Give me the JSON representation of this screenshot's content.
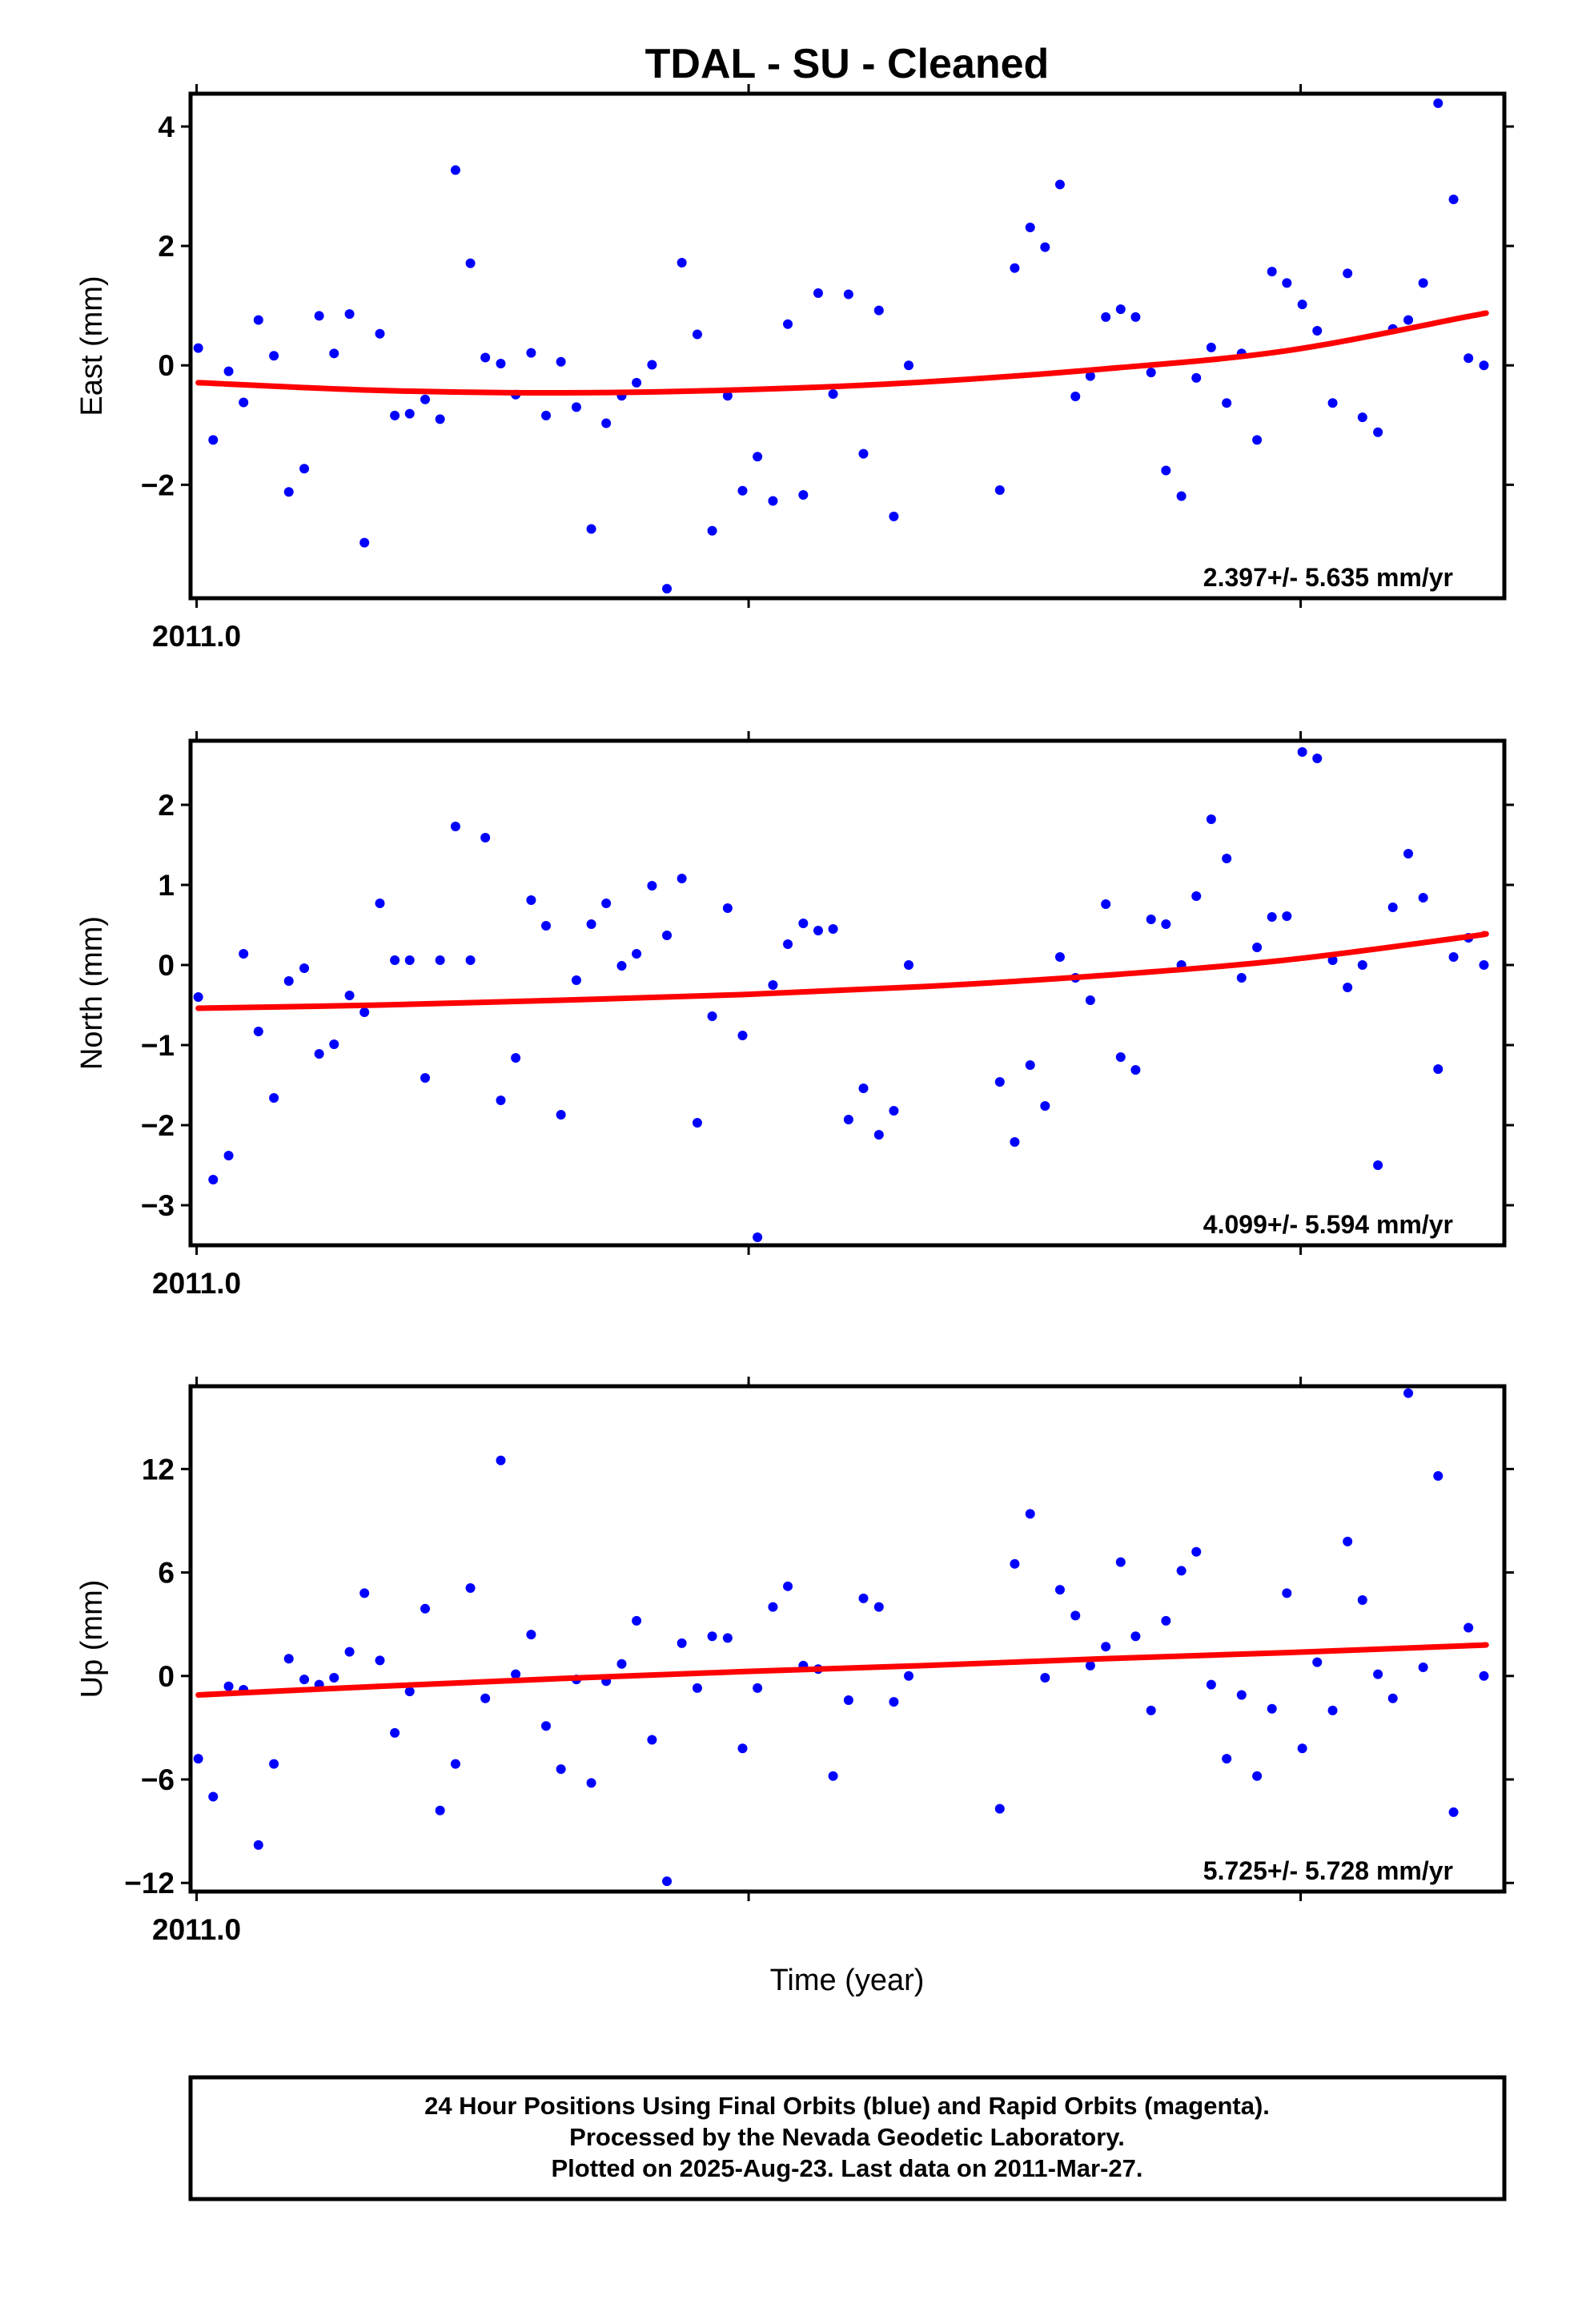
{
  "title": "TDAL  - SU - Cleaned",
  "xlabel": "Time (year)",
  "footer": [
    "24 Hour Positions Using Final Orbits (blue) and Rapid Orbits (magenta).",
    "Processed by the Nevada Geodetic Laboratory.",
    "Plotted on 2025-Aug-23. Last data on 2011-Mar-27."
  ],
  "colors": {
    "points": "#0000ff",
    "fit": "#ff0000",
    "frame": "#000000"
  },
  "chart_data": [
    {
      "type": "scatter",
      "ylabel": "East (mm)",
      "rate_text": "2.397+/- 5.635 mm/yr",
      "xlim": [
        2010.9989,
        2011.2369
      ],
      "ylim": [
        -3.9,
        4.55
      ],
      "x_ticks": [
        2011.0,
        2011.1,
        2011.2
      ],
      "x_tick_labels": [
        "2011.0",
        "",
        ""
      ],
      "y_ticks": [
        -2,
        0,
        2,
        4
      ],
      "y_tick_labels": [
        "−2",
        "0",
        "2",
        "4"
      ],
      "series": [
        {
          "kind": "points",
          "x": [
            2011.0003,
            2011.003,
            2011.0058,
            2011.0085,
            2011.0112,
            2011.014,
            2011.0167,
            2011.0195,
            2011.0222,
            2011.0249,
            2011.0277,
            2011.0304,
            2011.0332,
            2011.0359,
            2011.0386,
            2011.0414,
            2011.0441,
            2011.0469,
            2011.0496,
            2011.0523,
            2011.0551,
            2011.0578,
            2011.0606,
            2011.0633,
            2011.066,
            2011.0688,
            2011.0715,
            2011.0742,
            2011.077,
            2011.0797,
            2011.0825,
            2011.0852,
            2011.0879,
            2011.0907,
            2011.0934,
            2011.0962,
            2011.0989,
            2011.1016,
            2011.1044,
            2011.1071,
            2011.1099,
            2011.1126,
            2011.1153,
            2011.1181,
            2011.1208,
            2011.1236,
            2011.1263,
            2011.129,
            2011.1455,
            2011.1482,
            2011.151,
            2011.1537,
            2011.1564,
            2011.1592,
            2011.1619,
            2011.1647,
            2011.1674,
            2011.1701,
            2011.1729,
            2011.1756,
            2011.1784,
            2011.1811,
            2011.1838,
            2011.1866,
            2011.1893,
            2011.1921,
            2011.1948,
            2011.1975,
            2011.2003,
            2011.203,
            2011.2058,
            2011.2085,
            2011.2112,
            2011.214,
            2011.2167,
            2011.2195,
            2011.2222,
            2011.2249,
            2011.2277,
            2011.2304,
            2011.2332
          ],
          "y": [
            0.29,
            -1.25,
            -0.1,
            -0.62,
            0.76,
            0.16,
            -2.12,
            -1.73,
            0.83,
            0.2,
            0.86,
            -2.97,
            0.53,
            -0.84,
            -0.81,
            -0.57,
            -0.9,
            3.27,
            1.71,
            0.13,
            0.03,
            -0.49,
            0.21,
            -0.84,
            0.06,
            -0.7,
            -2.74,
            -0.97,
            -0.51,
            -0.29,
            0.01,
            -3.74,
            1.72,
            0.52,
            -2.77,
            -0.51,
            -2.1,
            -1.53,
            -2.27,
            0.69,
            -2.17,
            1.21,
            -0.48,
            1.19,
            -1.48,
            0.92,
            -2.53,
            0.0,
            -2.09,
            1.63,
            2.31,
            1.98,
            3.03,
            -0.52,
            -0.18,
            0.81,
            0.94,
            0.81,
            -0.12,
            -1.76,
            -2.19,
            -0.21,
            0.3,
            -0.63,
            0.2,
            -1.25,
            1.57,
            1.38,
            1.02,
            0.58,
            -0.63,
            1.54,
            -0.87,
            -1.12,
            0.61,
            0.76,
            1.38,
            4.39,
            2.78,
            0.12,
            0.0
          ]
        },
        {
          "kind": "fit",
          "x": [
            2011.0003,
            2011.0331,
            2011.0659,
            2011.0987,
            2011.1315,
            2011.1643,
            2011.1971,
            2011.2299,
            2011.2332
          ],
          "y": [
            -0.29,
            -0.42,
            -0.46,
            -0.41,
            -0.28,
            -0.06,
            0.24,
            0.81,
            0.87
          ]
        }
      ]
    },
    {
      "type": "scatter",
      "ylabel": "North (mm)",
      "rate_text": "4.099+/- 5.594 mm/yr",
      "xlim": [
        2010.9989,
        2011.2369
      ],
      "ylim": [
        -3.5,
        2.8
      ],
      "x_ticks": [
        2011.0,
        2011.1,
        2011.2
      ],
      "x_tick_labels": [
        "2011.0",
        "",
        ""
      ],
      "y_ticks": [
        -3,
        -2,
        -1,
        0,
        1,
        2
      ],
      "y_tick_labels": [
        "−3",
        "−2",
        "−1",
        "0",
        "1",
        "2"
      ],
      "series": [
        {
          "kind": "points",
          "x": [
            2011.0003,
            2011.003,
            2011.0058,
            2011.0085,
            2011.0112,
            2011.014,
            2011.0167,
            2011.0195,
            2011.0222,
            2011.0249,
            2011.0277,
            2011.0304,
            2011.0332,
            2011.0359,
            2011.0386,
            2011.0414,
            2011.0441,
            2011.0469,
            2011.0496,
            2011.0523,
            2011.0551,
            2011.0578,
            2011.0606,
            2011.0633,
            2011.066,
            2011.0688,
            2011.0715,
            2011.0742,
            2011.077,
            2011.0797,
            2011.0825,
            2011.0852,
            2011.0879,
            2011.0907,
            2011.0934,
            2011.0962,
            2011.0989,
            2011.1016,
            2011.1044,
            2011.1071,
            2011.1099,
            2011.1126,
            2011.1153,
            2011.1181,
            2011.1208,
            2011.1236,
            2011.1263,
            2011.129,
            2011.1455,
            2011.1482,
            2011.151,
            2011.1537,
            2011.1564,
            2011.1592,
            2011.1619,
            2011.1647,
            2011.1674,
            2011.1701,
            2011.1729,
            2011.1756,
            2011.1784,
            2011.1811,
            2011.1838,
            2011.1866,
            2011.1893,
            2011.1921,
            2011.1948,
            2011.1975,
            2011.2003,
            2011.203,
            2011.2058,
            2011.2085,
            2011.2112,
            2011.214,
            2011.2167,
            2011.2195,
            2011.2222,
            2011.2249,
            2011.2277,
            2011.2304,
            2011.2332
          ],
          "y": [
            -0.4,
            -2.68,
            -2.38,
            0.14,
            -0.83,
            -1.66,
            -0.2,
            -0.04,
            -1.11,
            -0.99,
            -0.38,
            -0.59,
            0.77,
            0.06,
            0.06,
            -1.41,
            0.06,
            1.73,
            0.06,
            1.59,
            -1.69,
            -1.16,
            0.81,
            0.49,
            -1.87,
            -0.19,
            0.51,
            0.77,
            -0.01,
            0.14,
            0.99,
            0.37,
            1.08,
            -1.97,
            -0.64,
            0.71,
            -0.88,
            -3.4,
            -0.25,
            0.26,
            0.52,
            0.43,
            0.45,
            -1.93,
            -1.54,
            -2.12,
            -1.82,
            0.0,
            -1.46,
            -2.21,
            -1.25,
            -1.76,
            0.1,
            -0.16,
            -0.44,
            0.76,
            -1.15,
            -1.31,
            0.57,
            0.51,
            0.0,
            0.86,
            1.82,
            1.33,
            -0.16,
            0.22,
            0.6,
            0.61,
            2.66,
            2.58,
            0.06,
            -0.28,
            0.0,
            -2.5,
            0.72,
            1.39,
            0.84,
            -1.3,
            0.1,
            0.34,
            0.0
          ]
        },
        {
          "kind": "fit",
          "x": [
            2011.0003,
            2011.0331,
            2011.0659,
            2011.0987,
            2011.1315,
            2011.1643,
            2011.1971,
            2011.2299,
            2011.2332
          ],
          "y": [
            -0.54,
            -0.5,
            -0.44,
            -0.37,
            -0.27,
            -0.13,
            0.06,
            0.35,
            0.39
          ]
        }
      ]
    },
    {
      "type": "scatter",
      "ylabel": "Up (mm)",
      "rate_text": "5.725+/- 5.728 mm/yr",
      "xlim": [
        2010.9989,
        2011.2369
      ],
      "ylim": [
        -12.5,
        16.8
      ],
      "x_ticks": [
        2011.0,
        2011.1,
        2011.2
      ],
      "x_tick_labels": [
        "2011.0",
        "",
        ""
      ],
      "y_ticks": [
        -12,
        -6,
        0,
        6,
        12
      ],
      "y_tick_labels": [
        "−12",
        "−6",
        "0",
        "6",
        "12"
      ],
      "series": [
        {
          "kind": "points",
          "x": [
            2011.0003,
            2011.003,
            2011.0058,
            2011.0085,
            2011.0112,
            2011.014,
            2011.0167,
            2011.0195,
            2011.0222,
            2011.0249,
            2011.0277,
            2011.0304,
            2011.0332,
            2011.0359,
            2011.0386,
            2011.0414,
            2011.0441,
            2011.0469,
            2011.0496,
            2011.0523,
            2011.0551,
            2011.0578,
            2011.0606,
            2011.0633,
            2011.066,
            2011.0688,
            2011.0715,
            2011.0742,
            2011.077,
            2011.0797,
            2011.0825,
            2011.0852,
            2011.0879,
            2011.0907,
            2011.0934,
            2011.0962,
            2011.0989,
            2011.1016,
            2011.1044,
            2011.1071,
            2011.1099,
            2011.1126,
            2011.1153,
            2011.1181,
            2011.1208,
            2011.1236,
            2011.1263,
            2011.129,
            2011.1455,
            2011.1482,
            2011.151,
            2011.1537,
            2011.1564,
            2011.1592,
            2011.1619,
            2011.1647,
            2011.1674,
            2011.1701,
            2011.1729,
            2011.1756,
            2011.1784,
            2011.1811,
            2011.1838,
            2011.1866,
            2011.1893,
            2011.1921,
            2011.1948,
            2011.1975,
            2011.2003,
            2011.203,
            2011.2058,
            2011.2085,
            2011.2112,
            2011.214,
            2011.2167,
            2011.2195,
            2011.2222,
            2011.2249,
            2011.2277,
            2011.2304,
            2011.2332
          ],
          "y": [
            -4.8,
            -7.0,
            -0.6,
            -0.8,
            -9.8,
            -5.1,
            1.0,
            -0.2,
            -0.5,
            -0.1,
            1.4,
            4.8,
            0.9,
            -3.3,
            -0.9,
            3.9,
            -7.8,
            -5.1,
            5.1,
            -1.3,
            12.5,
            0.1,
            2.4,
            -2.9,
            -5.4,
            -0.2,
            -6.2,
            -0.3,
            0.7,
            3.2,
            -3.7,
            -11.9,
            1.9,
            -0.7,
            2.3,
            2.2,
            -4.2,
            -0.7,
            4.0,
            5.2,
            0.6,
            0.4,
            -5.8,
            -1.4,
            4.5,
            4.0,
            -1.5,
            0.0,
            -7.7,
            6.5,
            9.4,
            -0.1,
            5.0,
            3.5,
            0.6,
            1.7,
            6.6,
            2.3,
            -2.0,
            3.2,
            6.1,
            7.2,
            -0.5,
            -4.8,
            -1.1,
            -5.8,
            -1.9,
            4.8,
            -4.2,
            0.8,
            -2.0,
            7.8,
            4.4,
            0.1,
            -1.3,
            16.4,
            0.5,
            11.6,
            -7.9,
            2.8,
            0.0
          ]
        },
        {
          "kind": "fit",
          "x": [
            2011.0003,
            2011.0331,
            2011.0659,
            2011.0987,
            2011.1315,
            2011.1643,
            2011.1971,
            2011.2299,
            2011.2332
          ],
          "y": [
            -1.1,
            -0.6,
            -0.15,
            0.25,
            0.6,
            1.0,
            1.35,
            1.75,
            1.8
          ]
        }
      ]
    }
  ]
}
